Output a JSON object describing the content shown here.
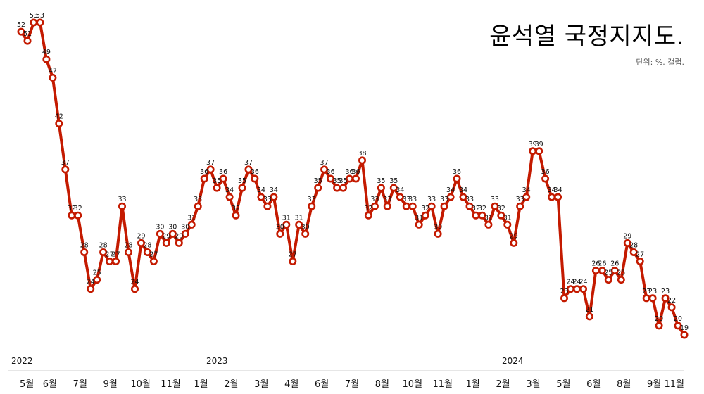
{
  "header": {
    "title": "윤석열 국정지지도.",
    "subtitle": "단위: %. 갤럽."
  },
  "chart_data": {
    "type": "line",
    "title": "윤석열 국정지지도.",
    "subtitle": "단위: %. 갤럽.",
    "xlabel": "",
    "ylabel": "",
    "ylim": [
      15,
      55
    ],
    "grid": false,
    "legend": "none",
    "line_color": "#c41a00",
    "marker_fill": "#ffffff",
    "year_labels": [
      "2022",
      "2023",
      "2024"
    ],
    "month_labels": [
      "5월",
      "6월",
      "7월",
      "9월",
      "10월",
      "11월",
      "1월",
      "2월",
      "3월",
      "4월",
      "6월",
      "7월",
      "8월",
      "10월",
      "11월",
      "1월",
      "2월",
      "3월",
      "5월",
      "6월",
      "8월",
      "9월",
      "11월"
    ],
    "values": [
      52,
      51,
      53,
      53,
      49,
      47,
      42,
      37,
      32,
      32,
      28,
      24,
      25,
      28,
      27,
      27,
      33,
      28,
      24,
      29,
      28,
      27,
      30,
      29,
      30,
      29,
      30,
      31,
      33,
      36,
      37,
      35,
      36,
      34,
      32,
      35,
      37,
      36,
      34,
      33,
      34,
      30,
      31,
      27,
      31,
      30,
      33,
      35,
      37,
      36,
      35,
      35,
      36,
      36,
      38,
      32,
      33,
      35,
      33,
      35,
      34,
      33,
      33,
      31,
      32,
      33,
      30,
      33,
      34,
      36,
      34,
      33,
      32,
      32,
      31,
      33,
      32,
      31,
      29,
      33,
      34,
      39,
      39,
      36,
      34,
      34,
      23,
      24,
      24,
      24,
      21,
      26,
      26,
      25,
      26,
      25,
      29,
      28,
      27,
      23,
      23,
      20,
      23,
      22,
      20,
      19
    ]
  }
}
